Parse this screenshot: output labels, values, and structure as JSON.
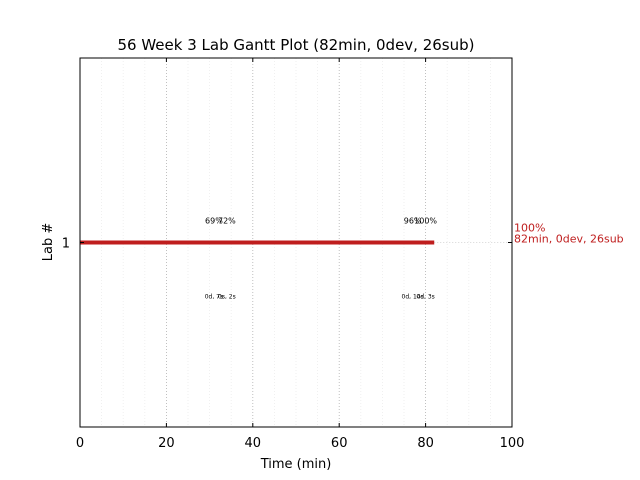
{
  "chart_data": {
    "type": "bar",
    "title": "56 Week 3 Lab Gantt Plot (82min, 0dev, 26sub)",
    "xlabel": "Time (min)",
    "ylabel": "Lab #",
    "xlim": [
      0,
      100
    ],
    "xticks": [
      "0",
      "20",
      "40",
      "60",
      "80",
      "100"
    ],
    "xtick_values": [
      0,
      20,
      40,
      60,
      80,
      100
    ],
    "minor_x_step": 5,
    "ylim": [
      0,
      2
    ],
    "yticks": [
      {
        "label": "1",
        "value": 1
      }
    ],
    "grid": true,
    "bar_color": "#bf1e1e",
    "bars": [
      {
        "lab": 1,
        "start": 0,
        "end": 82
      }
    ],
    "end_label": {
      "percent": "100%",
      "summary": "82min, 0dev, 26sub"
    },
    "annotations_top": [
      {
        "x": 31,
        "text": "69%"
      },
      {
        "x": 34,
        "text": "72%"
      },
      {
        "x": 77,
        "text": "96%"
      },
      {
        "x": 80,
        "text": "100%"
      }
    ],
    "annotations_bottom": [
      {
        "x": 31,
        "text": "0d, 7s"
      },
      {
        "x": 34,
        "text": "0s, 2s"
      },
      {
        "x": 77,
        "text": "0d, 14s"
      },
      {
        "x": 80,
        "text": "0d, 3s"
      }
    ]
  }
}
